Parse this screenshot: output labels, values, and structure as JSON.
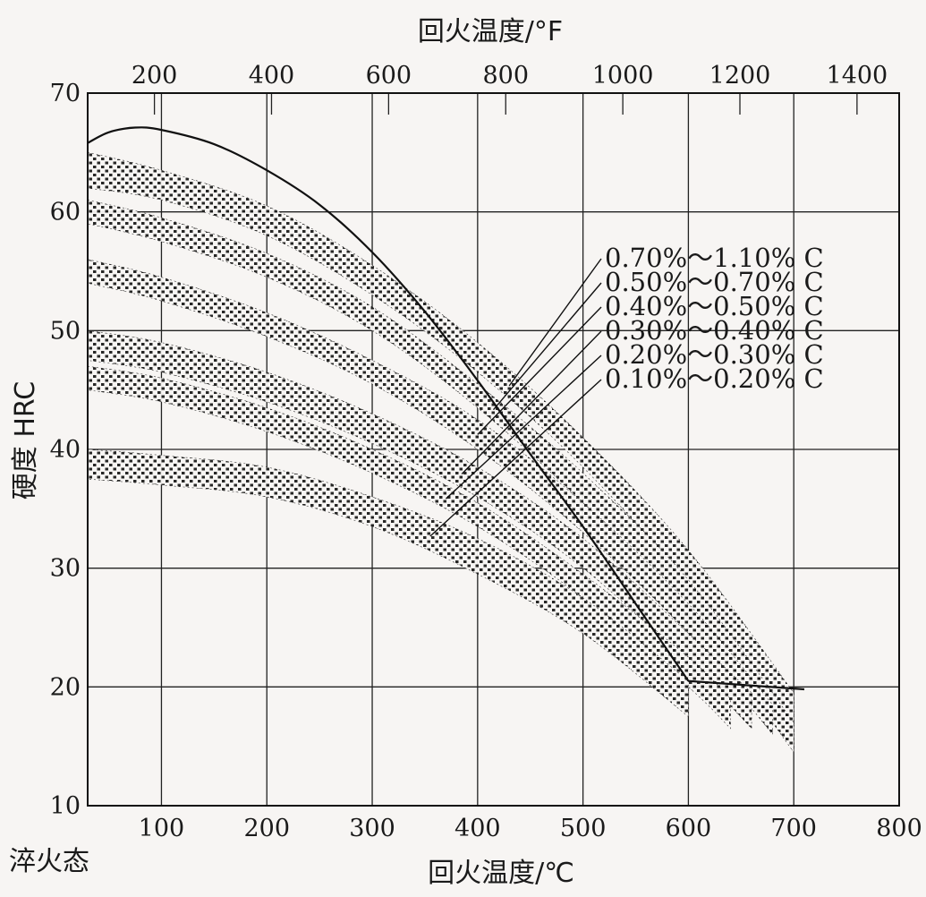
{
  "chart_data": {
    "type": "area",
    "title": "",
    "xlabel": "回火温度/℃",
    "xlabel_top": "回火温度/°F",
    "ylabel": "硬度 HRC",
    "xlim": [
      30,
      800
    ],
    "ylim": [
      10,
      70
    ],
    "x_ticks": [
      100,
      200,
      300,
      400,
      500,
      600,
      700,
      800
    ],
    "y_ticks": [
      10,
      20,
      30,
      40,
      50,
      60,
      70
    ],
    "x_top_ticks": [
      200,
      400,
      600,
      800,
      1000,
      1200,
      1400
    ],
    "x_origin_label": "淬火态",
    "grid": true,
    "upper_bound_curve": {
      "x": [
        30,
        50,
        75,
        100,
        150,
        200,
        250,
        300,
        350,
        400,
        450,
        500,
        550,
        600,
        650,
        700,
        710
      ],
      "y": [
        65.8,
        66.7,
        67.1,
        66.9,
        65.7,
        63.5,
        60.6,
        56.6,
        51.6,
        45.8,
        39.6,
        33.5,
        27.0,
        20.5,
        20.0,
        20.6,
        19.8
      ]
    },
    "series": [
      {
        "name": "0.70%～1.10% C",
        "x": [
          30,
          100,
          200,
          300,
          400,
          500,
          600,
          700
        ],
        "upper": [
          65.0,
          63.5,
          60.5,
          55.5,
          49.0,
          41.0,
          31.5,
          19.5
        ],
        "lower": [
          62.0,
          61.0,
          58.0,
          53.0,
          46.5,
          38.5,
          28.5,
          16.0
        ]
      },
      {
        "name": "0.50%～0.70% C",
        "x": [
          30,
          100,
          200,
          300,
          400,
          500,
          600,
          700
        ],
        "upper": [
          61.0,
          59.5,
          56.5,
          52.0,
          45.5,
          38.0,
          29.0,
          17.0
        ],
        "lower": [
          59.0,
          57.5,
          54.5,
          50.0,
          43.5,
          35.5,
          26.5,
          14.5
        ]
      },
      {
        "name": "0.40%～0.50% C",
        "x": [
          30,
          100,
          200,
          300,
          400,
          500,
          600,
          680
        ],
        "upper": [
          56.0,
          54.5,
          51.5,
          47.5,
          42.5,
          35.5,
          27.0,
          18.5
        ],
        "lower": [
          54.0,
          52.5,
          49.5,
          45.5,
          40.0,
          33.0,
          24.5,
          16.0
        ]
      },
      {
        "name": "0.30%～0.40% C",
        "x": [
          30,
          100,
          200,
          300,
          400,
          500,
          600,
          660
        ],
        "upper": [
          50.0,
          49.0,
          46.5,
          43.0,
          38.5,
          32.5,
          24.5,
          19.5
        ],
        "lower": [
          47.5,
          46.5,
          44.0,
          40.5,
          36.0,
          30.0,
          22.0,
          16.5
        ]
      },
      {
        "name": "0.20%～0.30% C",
        "x": [
          30,
          100,
          200,
          300,
          400,
          500,
          600,
          640
        ],
        "upper": [
          47.0,
          46.0,
          43.5,
          40.0,
          35.5,
          29.5,
          22.5,
          19.0
        ],
        "lower": [
          45.0,
          44.0,
          41.5,
          38.0,
          33.5,
          27.5,
          20.0,
          16.5
        ]
      },
      {
        "name": "0.10%～0.20% C",
        "x": [
          30,
          100,
          200,
          300,
          400,
          500,
          600
        ],
        "upper": [
          40.0,
          39.5,
          38.5,
          36.0,
          32.5,
          27.5,
          20.5
        ],
        "lower": [
          37.5,
          37.0,
          36.0,
          33.5,
          29.5,
          24.5,
          17.5
        ]
      }
    ]
  }
}
